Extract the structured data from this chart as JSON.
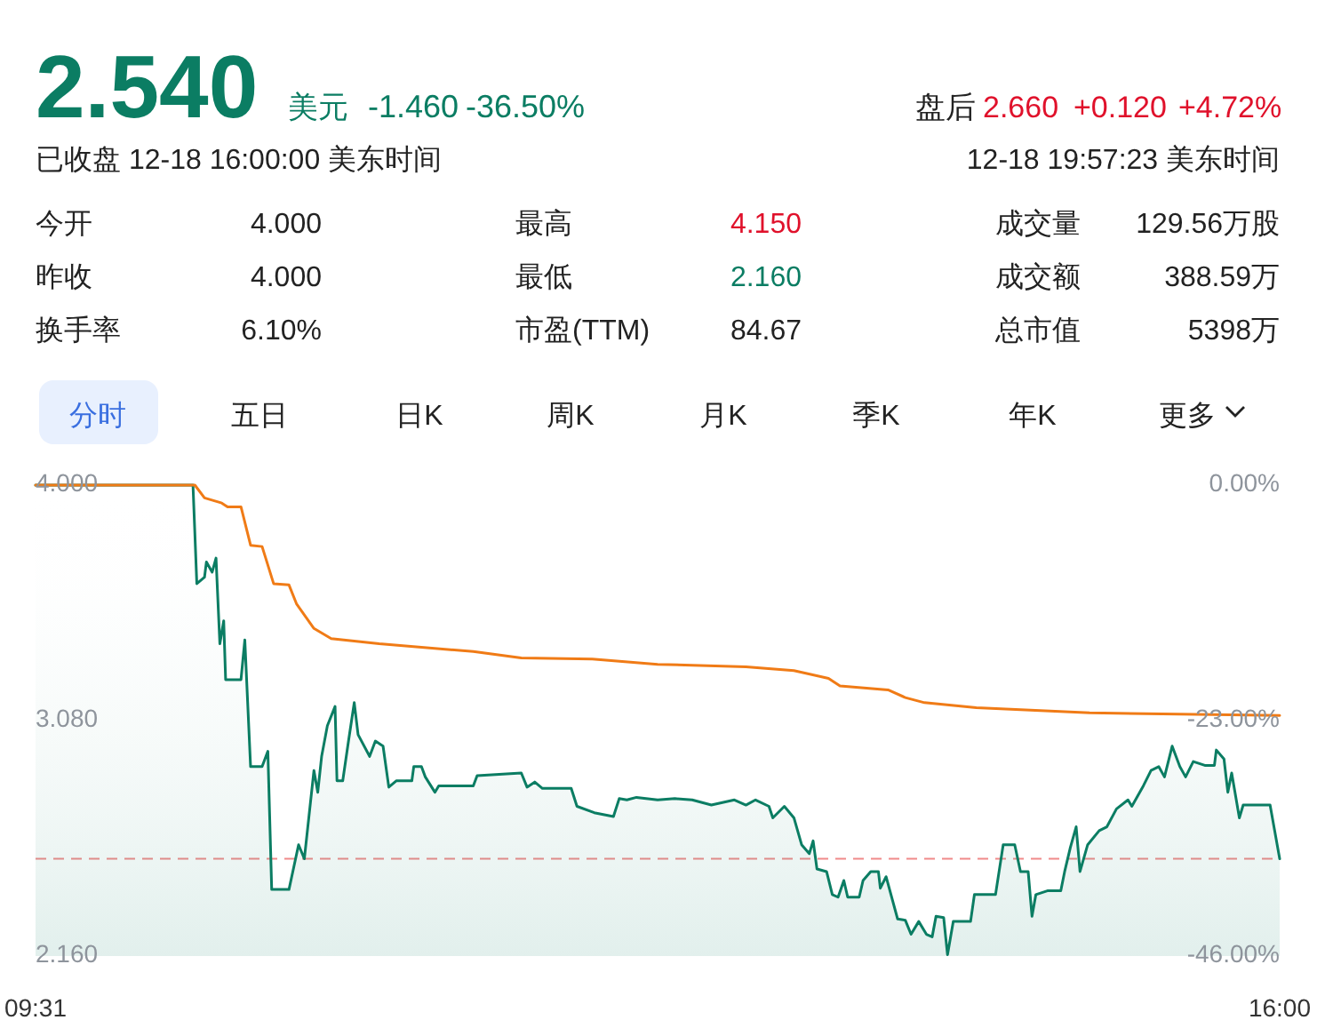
{
  "chart_data": [
    {
      "type": "other",
      "annotations": [
        "2.540",
        "美元",
        "-1.460",
        "-36.50%",
        "盘后",
        "2.660",
        "+0.120",
        "+4.72%",
        "已收盘 12-18 16:00:00 美东时间",
        "12-18 19:57:23 美东时间",
        "今开",
        "4.000",
        "最高",
        "4.150",
        "成交量",
        "129.56万股",
        "昨收",
        "4.000",
        "最低",
        "2.160",
        "成交额",
        "388.59万",
        "换手率",
        "6.10%",
        "市盈(TTM)",
        "84.67",
        "总市值",
        "5398万",
        "分时",
        "五日",
        "日K",
        "周K",
        "月K",
        "季K",
        "年K",
        "更多"
      ]
    },
    {
      "type": "line",
      "xlim": [
        9.52,
        16
      ],
      "xticks": [
        {
          "value": 9.52,
          "label": "09:31"
        },
        {
          "value": 16,
          "label": "16:00"
        }
      ],
      "ylim": [
        2.16,
        4.0
      ],
      "yticks": [
        {
          "value": 4.0,
          "label": "4.000"
        },
        {
          "value": 3.08,
          "label": "3.080"
        },
        {
          "value": 2.16,
          "label": "2.160"
        }
      ],
      "y2lim": [
        -46,
        0
      ],
      "y2ticks": [
        {
          "value": 0,
          "label": "0.00%"
        },
        {
          "value": -23,
          "label": "-23.00%"
        },
        {
          "value": -46,
          "label": "-46.00%"
        }
      ],
      "grid": false,
      "ref_lines": [
        {
          "axis": "y",
          "value": 2.54,
          "color": "#f08a8a",
          "line_style": "dashed"
        }
      ],
      "series": [
        {
          "type": "area",
          "color": "#0b7d63",
          "x": [
            9.52,
            10.34,
            10.36,
            10.4,
            10.41,
            10.44,
            10.46,
            10.48,
            10.5,
            10.51,
            10.59,
            10.61,
            10.64,
            10.7,
            10.73,
            10.75,
            10.84,
            10.89,
            10.92,
            10.97,
            10.99,
            11.01,
            11.04,
            11.08,
            11.09,
            11.12,
            11.15,
            11.18,
            11.2,
            11.26,
            11.29,
            11.33,
            11.36,
            11.4,
            11.48,
            11.49,
            11.53,
            11.55,
            11.6,
            11.62,
            11.8,
            11.82,
            12.05,
            12.08,
            12.12,
            12.16,
            12.31,
            12.34,
            12.43,
            12.53,
            12.56,
            12.6,
            12.65,
            12.76,
            12.85,
            12.94,
            13.04,
            13.16,
            13.22,
            13.27,
            13.34,
            13.36,
            13.42,
            13.47,
            13.51,
            13.55,
            13.57,
            13.59,
            13.64,
            13.67,
            13.7,
            13.73,
            13.75,
            13.81,
            13.83,
            13.87,
            13.91,
            13.92,
            13.95,
            14.01,
            14.05,
            14.08,
            14.12,
            14.16,
            14.19,
            14.21,
            14.25,
            14.27,
            14.3,
            14.39,
            14.41,
            14.52,
            14.56,
            14.62,
            14.65,
            14.69,
            14.71,
            14.73,
            14.79,
            14.86,
            14.88,
            14.91,
            14.94,
            14.96,
            15.0,
            15.06,
            15.1,
            15.15,
            15.21,
            15.23,
            15.29,
            15.33,
            15.37,
            15.4,
            15.44,
            15.48,
            15.51,
            15.55,
            15.61,
            15.66,
            15.67,
            15.71,
            15.73,
            15.75,
            15.79,
            15.81,
            15.95,
            16.0
          ],
          "values": [
            4.0,
            4.0,
            3.615,
            3.64,
            3.7,
            3.66,
            3.715,
            3.38,
            3.47,
            3.24,
            3.24,
            3.395,
            2.9,
            2.9,
            2.96,
            2.42,
            2.42,
            2.595,
            2.54,
            2.885,
            2.8,
            2.94,
            3.06,
            3.135,
            2.845,
            2.845,
            3.0,
            3.15,
            3.025,
            2.94,
            3.0,
            2.98,
            2.82,
            2.845,
            2.845,
            2.9,
            2.9,
            2.86,
            2.8,
            2.825,
            2.825,
            2.865,
            2.875,
            2.82,
            2.84,
            2.815,
            2.815,
            2.745,
            2.72,
            2.705,
            2.775,
            2.77,
            2.78,
            2.77,
            2.775,
            2.77,
            2.75,
            2.77,
            2.75,
            2.77,
            2.745,
            2.7,
            2.745,
            2.7,
            2.595,
            2.56,
            2.61,
            2.5,
            2.49,
            2.4,
            2.39,
            2.455,
            2.39,
            2.39,
            2.455,
            2.49,
            2.49,
            2.425,
            2.47,
            2.305,
            2.3,
            2.245,
            2.295,
            2.245,
            2.235,
            2.315,
            2.31,
            2.165,
            2.295,
            2.295,
            2.4,
            2.4,
            2.595,
            2.595,
            2.49,
            2.49,
            2.315,
            2.4,
            2.415,
            2.415,
            2.49,
            2.585,
            2.665,
            2.49,
            2.595,
            2.65,
            2.665,
            2.735,
            2.77,
            2.745,
            2.825,
            2.885,
            2.9,
            2.86,
            2.98,
            2.9,
            2.86,
            2.92,
            2.905,
            2.905,
            2.965,
            2.93,
            2.8,
            2.875,
            2.7,
            2.75,
            2.75,
            2.54
          ]
        },
        {
          "type": "line",
          "color": "#f07b16",
          "x": [
            9.52,
            10.35,
            10.4,
            10.49,
            10.52,
            10.59,
            10.64,
            10.7,
            10.76,
            10.84,
            10.88,
            10.97,
            11.06,
            11.31,
            11.8,
            12.05,
            12.42,
            12.76,
            13.22,
            13.47,
            13.65,
            13.71,
            13.96,
            14.05,
            14.15,
            14.42,
            15.01,
            16.0
          ],
          "values": [
            4.0,
            4.0,
            3.95,
            3.93,
            3.915,
            3.915,
            3.765,
            3.76,
            3.615,
            3.61,
            3.535,
            3.44,
            3.4,
            3.38,
            3.35,
            3.325,
            3.32,
            3.3,
            3.29,
            3.275,
            3.245,
            3.215,
            3.2,
            3.17,
            3.15,
            3.13,
            3.11,
            3.1
          ]
        }
      ]
    }
  ]
}
